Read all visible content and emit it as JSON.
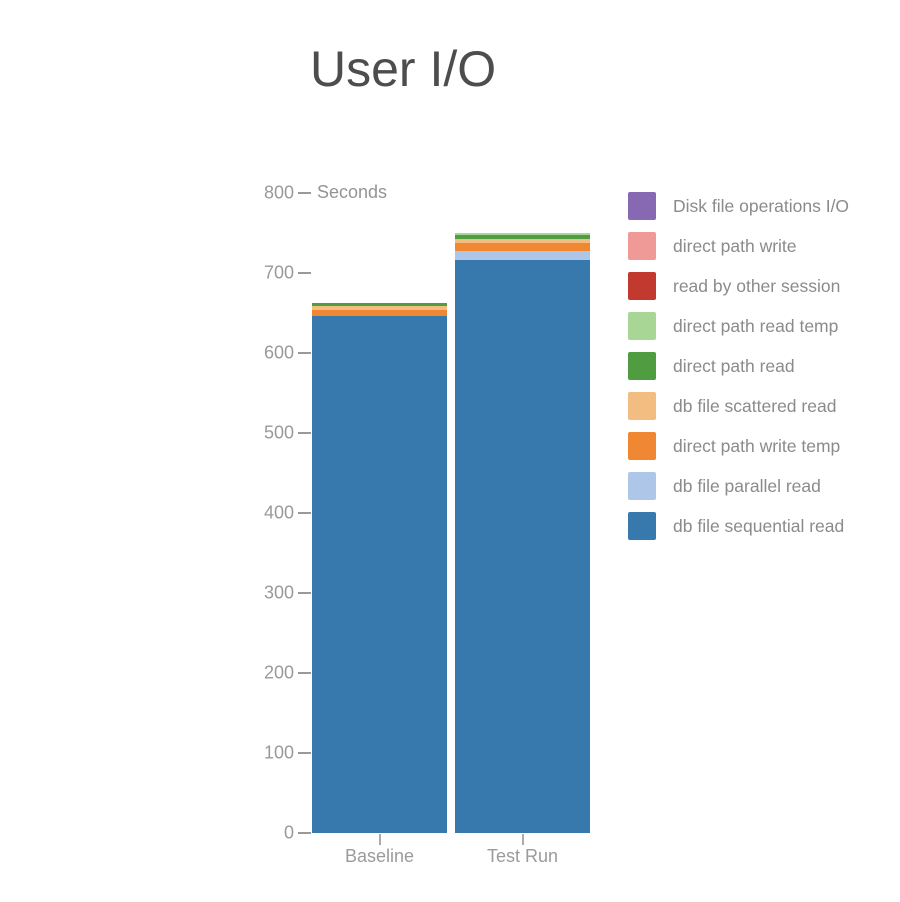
{
  "title": "User I/O",
  "axis": {
    "unit_label": "Seconds",
    "ticks": [
      0,
      100,
      200,
      300,
      400,
      500,
      600,
      700,
      800
    ],
    "y_max": 800
  },
  "colors": {
    "title_text": "#4d4d4d",
    "axis_text": "#999999",
    "legend_text": "#8b8b8b",
    "background": "#ffffff"
  },
  "chart_data": {
    "type": "bar",
    "stacked": true,
    "title": "User I/O",
    "ylabel": "Seconds",
    "ylim": [
      0,
      800
    ],
    "grid": false,
    "legend_position": "right",
    "legend_order": "reverse_of_series",
    "categories": [
      "Baseline",
      "Test Run"
    ],
    "series_order": "bottom_to_top",
    "series": [
      {
        "name": "db file sequential read",
        "color": "#3778ad",
        "values": [
          646,
          716
        ]
      },
      {
        "name": "db file parallel read",
        "color": "#aec6e8",
        "values": [
          0,
          11
        ]
      },
      {
        "name": "direct path write temp",
        "color": "#f08733",
        "values": [
          8,
          10
        ]
      },
      {
        "name": "db file scattered read",
        "color": "#f3bc81",
        "values": [
          5,
          6
        ]
      },
      {
        "name": "direct path read",
        "color": "#4f9d40",
        "values": [
          4,
          4
        ]
      },
      {
        "name": "direct path read temp",
        "color": "#a8d795",
        "values": [
          0,
          3
        ]
      },
      {
        "name": "read by other session",
        "color": "#c2392f",
        "values": [
          0,
          0
        ]
      },
      {
        "name": "direct path write",
        "color": "#f09a98",
        "values": [
          0,
          0
        ]
      },
      {
        "name": "Disk file operations I/O",
        "color": "#8768b3",
        "values": [
          0,
          0
        ]
      }
    ],
    "totals": [
      663,
      750
    ]
  }
}
